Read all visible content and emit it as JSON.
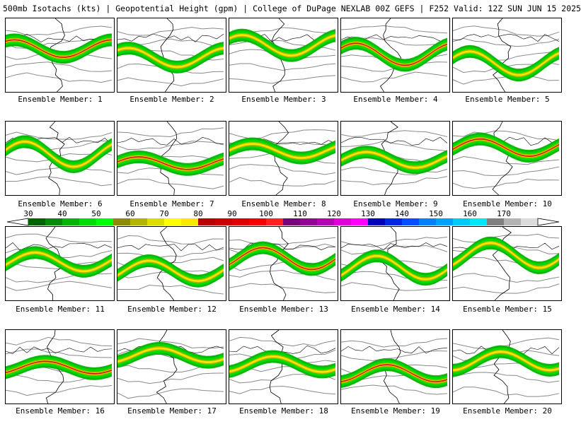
{
  "title": "500mb Isotachs (kts) | Geopotential Height (gpm) | College of DuPage NEXLAB   00Z GEFS | F252 Valid: 12Z SUN JUN 15 2025",
  "panels": [
    {
      "label": "Ensemble Member: 1"
    },
    {
      "label": "Ensemble Member: 2"
    },
    {
      "label": "Ensemble Member: 3"
    },
    {
      "label": "Ensemble Member: 4"
    },
    {
      "label": "Ensemble Member: 5"
    },
    {
      "label": "Ensemble Member: 6"
    },
    {
      "label": "Ensemble Member: 7"
    },
    {
      "label": "Ensemble Member: 8"
    },
    {
      "label": "Ensemble Member: 9"
    },
    {
      "label": "Ensemble Member: 10"
    },
    {
      "label": "Ensemble Member: 11"
    },
    {
      "label": "Ensemble Member: 12"
    },
    {
      "label": "Ensemble Member: 13"
    },
    {
      "label": "Ensemble Member: 14"
    },
    {
      "label": "Ensemble Member: 15"
    },
    {
      "label": "Ensemble Member: 16"
    },
    {
      "label": "Ensemble Member: 17"
    },
    {
      "label": "Ensemble Member: 18"
    },
    {
      "label": "Ensemble Member: 19"
    },
    {
      "label": "Ensemble Member: 20"
    }
  ],
  "colorbar": {
    "ticks": [
      "30",
      "40",
      "50",
      "60",
      "70",
      "80",
      "90",
      "100",
      "110",
      "120",
      "130",
      "140",
      "150",
      "160",
      "170"
    ],
    "colors": [
      "#006400",
      "#008c00",
      "#00b400",
      "#00dc00",
      "#00ff00",
      "#8c8c00",
      "#b4b400",
      "#dcdc00",
      "#ffff00",
      "#ffe600",
      "#b40000",
      "#c80000",
      "#dc0000",
      "#f00000",
      "#ff2020",
      "#780078",
      "#960096",
      "#b400b4",
      "#dc00dc",
      "#ff00ff",
      "#0000b4",
      "#0028dc",
      "#0050ff",
      "#0080ff",
      "#00a0ff",
      "#00c8ff",
      "#00e6ff",
      "#808080",
      "#b4b4b4",
      "#dcdcdc"
    ]
  }
}
